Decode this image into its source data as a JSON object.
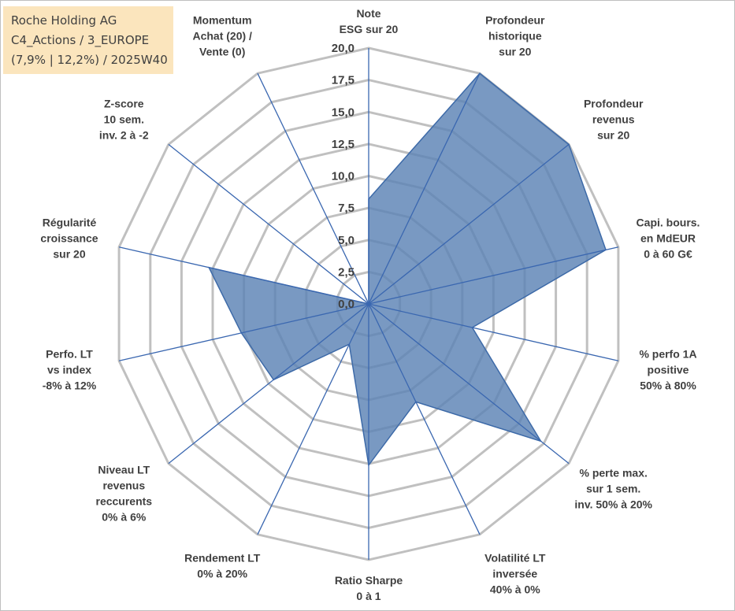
{
  "title": {
    "lines": [
      "Roche Holding AG",
      "C4_Actions / 3_EUROPE",
      "(7,9% | 12,2%) / 2025W40"
    ]
  },
  "colors": {
    "fill": "#5b83b5",
    "stroke": "#3d6aa8",
    "spoke": "#3a67b0",
    "grid": "#c0c0c0",
    "title_bg": "#fbe5bd"
  },
  "chart_data": {
    "type": "radar",
    "rlim": [
      0,
      20
    ],
    "ticks": [
      "0,0",
      "2,5",
      "5,0",
      "7,5",
      "10,0",
      "12,5",
      "15,0",
      "17,5",
      "20,0"
    ],
    "tick_values": [
      0,
      2.5,
      5,
      7.5,
      10,
      12.5,
      15,
      17.5,
      20
    ],
    "categories": [
      {
        "lines": [
          "Note",
          "ESG sur 20"
        ]
      },
      {
        "lines": [
          "Profondeur",
          "historique",
          "sur 20"
        ]
      },
      {
        "lines": [
          "Profondeur",
          "revenus",
          "sur 20"
        ]
      },
      {
        "lines": [
          "Capi. bours.",
          "en MdEUR",
          "0 à 60 G€"
        ]
      },
      {
        "lines": [
          "% perfo 1A",
          "positive",
          "50% à 80%"
        ]
      },
      {
        "lines": [
          "% perte max.",
          "sur 1 sem.",
          "inv. 50% à 20%"
        ]
      },
      {
        "lines": [
          "Volatilité LT",
          "inversée",
          "40% à 0%"
        ]
      },
      {
        "lines": [
          "Ratio Sharpe",
          "0 à 1"
        ]
      },
      {
        "lines": [
          "Rendement LT",
          "0% à 20%"
        ]
      },
      {
        "lines": [
          "Niveau LT",
          "revenus",
          "reccurents",
          "0% à 6%"
        ]
      },
      {
        "lines": [
          "Perfo. LT",
          "vs index",
          "-8% à 12%"
        ]
      },
      {
        "lines": [
          "Régularité",
          "croissance",
          "sur 20"
        ]
      },
      {
        "lines": [
          "Z-score",
          "10 sem.",
          "inv. 2 à -2"
        ]
      },
      {
        "lines": [
          "Momentum",
          "Achat (20) /",
          "Vente (0)"
        ]
      }
    ],
    "series": [
      {
        "name": "Roche Holding AG",
        "values": [
          8.2,
          20,
          20,
          19,
          8.3,
          17.2,
          8.5,
          12.6,
          3.5,
          9.5,
          10.2,
          12.8,
          0,
          0
        ]
      }
    ]
  }
}
